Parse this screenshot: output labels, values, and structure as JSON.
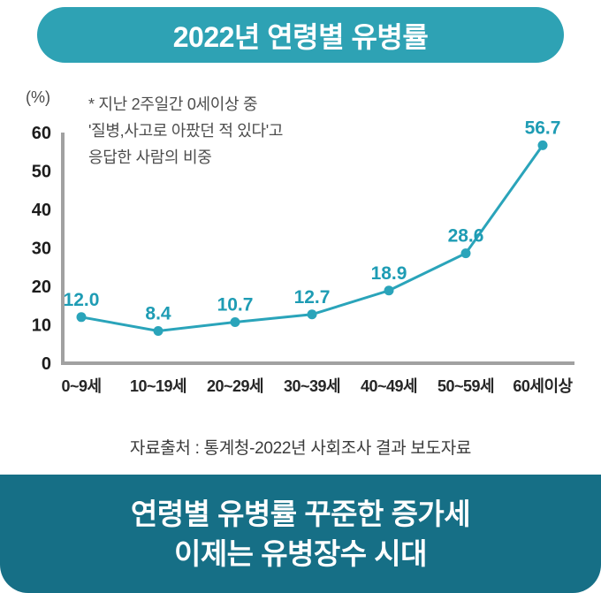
{
  "header": {
    "title": "2022년 연령별 유병률",
    "bg_color": "#2ea2b4",
    "text_color": "#ffffff"
  },
  "chart_data": {
    "type": "line",
    "categories": [
      "0~9세",
      "10~19세",
      "20~29세",
      "30~39세",
      "40~49세",
      "50~59세",
      "60세이상"
    ],
    "values": [
      12.0,
      8.4,
      10.7,
      12.7,
      18.9,
      28.6,
      56.7
    ],
    "value_labels": [
      "12.0",
      "8.4",
      "10.7",
      "12.7",
      "18.9",
      "28.6",
      "56.7"
    ],
    "unit_label": "(%)",
    "annotation": "* 지난 2주일간 0세이상 중\n'질병,사고로 아팠던 적 있다'고\n응답한 사람의 비중",
    "ylim": [
      0,
      60
    ],
    "yticks": [
      0,
      10,
      20,
      30,
      40,
      50,
      60
    ],
    "grid": false,
    "legend": "none",
    "line_color": "#2aa4ba",
    "point_color": "#2aa4ba",
    "value_label_color": "#1e9cb4",
    "axis_color": "#a1a1a1",
    "tick_label_color": "#1c1c1c",
    "category_label_color": "#262626"
  },
  "source": {
    "text": "자료출처 : 통계청-2022년 사회조사 결과 보도자료"
  },
  "footer": {
    "line1": "연령별 유병률 꾸준한 증가세",
    "line2": "이제는 유병장수 시대",
    "bg_color": "#166f86",
    "text_color": "#ffffff"
  }
}
